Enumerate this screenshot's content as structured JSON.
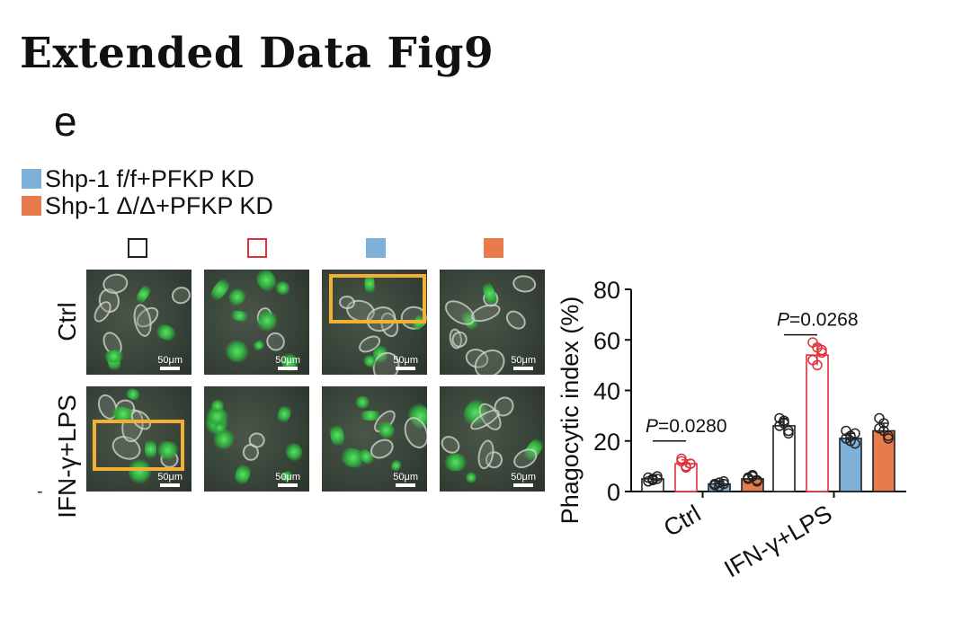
{
  "figure": {
    "title": "Extended Data Fig9",
    "panel": "e"
  },
  "legend": [
    {
      "label": "Shp-1 f/f+PFKP KD",
      "color": "#7fb0d8"
    },
    {
      "label": "Shp-1 Δ/Δ+PFKP KD",
      "color": "#e87b4c"
    }
  ],
  "micrographs": {
    "group_squares": [
      {
        "style": "open",
        "color": "#222222"
      },
      {
        "style": "open",
        "color": "#e0303a"
      },
      {
        "style": "filled",
        "color": "#7fb0d8"
      },
      {
        "style": "filled",
        "color": "#e87b4c"
      }
    ],
    "rows": [
      "Ctrl",
      "IFN-γ+LPS"
    ],
    "scale_bar": "50μm"
  },
  "chart_data": {
    "type": "bar",
    "ylabel": "Phagocytic index (%)",
    "ylim": [
      0,
      80
    ],
    "yticks": [
      0,
      20,
      40,
      60,
      80
    ],
    "categories": [
      "Ctrl",
      "IFN-γ+LPS"
    ],
    "series": [
      {
        "style": "open",
        "edge": "#222222",
        "fill": "#ffffff",
        "values": [
          5,
          26
        ],
        "errors": [
          1,
          3
        ],
        "points": [
          [
            4,
            5,
            6,
            5.5,
            4.5,
            5
          ],
          [
            29,
            27,
            23,
            26,
            28,
            24
          ]
        ]
      },
      {
        "style": "open",
        "edge": "#e0303a",
        "fill": "#ffffff",
        "values": [
          11,
          54
        ],
        "errors": [
          1.5,
          4
        ],
        "points": [
          [
            13,
            10,
            11,
            12,
            9.5,
            11
          ],
          [
            59,
            57,
            55,
            52,
            50,
            56
          ]
        ]
      },
      {
        "style": "filled",
        "edge": "#222222",
        "fill": "#7fb0d8",
        "values": [
          3,
          21
        ],
        "errors": [
          1,
          2
        ],
        "points": [
          [
            2.5,
            3.5,
            4,
            3,
            2,
            3
          ],
          [
            24,
            22,
            19,
            21,
            20,
            23
          ]
        ]
      },
      {
        "style": "filled",
        "edge": "#222222",
        "fill": "#e87b4c",
        "values": [
          5,
          24
        ],
        "errors": [
          1,
          3
        ],
        "points": [
          [
            5,
            6,
            4.5,
            5.5,
            6.5,
            4
          ],
          [
            29,
            27,
            22,
            25,
            24,
            21
          ]
        ]
      }
    ],
    "annotations": [
      {
        "label": "P=0.0280",
        "p_symbol": "P",
        "p_value": "=0.0280",
        "category": 0,
        "from_series": 0,
        "to_series": 1,
        "y": 20
      },
      {
        "label": "P=0.0268",
        "p_symbol": "P",
        "p_value": "=0.0268",
        "category": 1,
        "from_series": 0,
        "to_series": 1,
        "y": 62
      }
    ]
  }
}
